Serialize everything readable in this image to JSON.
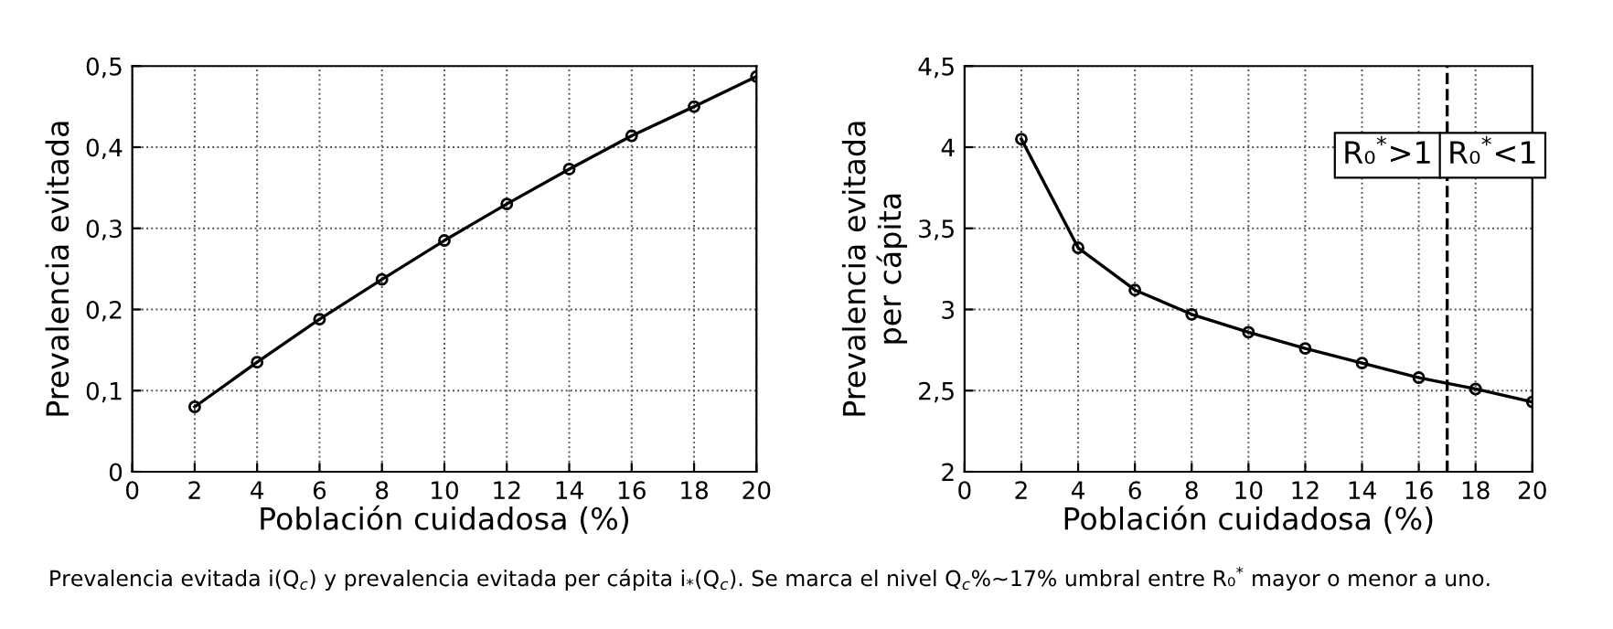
{
  "chart_data": [
    {
      "type": "line",
      "xlabel": "Población cuidadosa (%)",
      "ylabel": "Prevalencia evitada",
      "x": [
        2,
        4,
        6,
        8,
        10,
        12,
        14,
        16,
        18,
        20
      ],
      "series": [
        {
          "color": "#000000",
          "values": [
            0.08,
            0.135,
            0.188,
            0.237,
            0.285,
            0.33,
            0.373,
            0.414,
            0.45,
            0.487
          ]
        }
      ],
      "xlim": [
        0,
        20
      ],
      "xticks": [
        0,
        2,
        4,
        6,
        8,
        10,
        12,
        14,
        16,
        18,
        20
      ],
      "ylim": [
        0,
        0.5
      ],
      "yticks": [
        0,
        {
          "value": 0.1,
          "label": "0,1"
        },
        {
          "value": 0.2,
          "label": "0,2"
        },
        {
          "value": 0.3,
          "label": "0,3"
        },
        {
          "value": 0.4,
          "label": "0,4"
        },
        {
          "value": 0.5,
          "label": "0,5"
        }
      ],
      "grid": true,
      "marker": "circle",
      "line_style": "solid",
      "annotations": [
        "Prevalencia evitada i(Q$_{c}$) y prevalencia evitada per cápita i$_{*}$(Q$_{c}$). Se marca el nivel Q$_{c}$%~17% umbral entre R₀$^{*}$ mayor o menor a uno."
      ]
    },
    {
      "type": "line",
      "xlabel": "Población cuidadosa (%)",
      "ylabel": "Prevalencia evitada\nper cápita",
      "x": [
        2,
        4,
        6,
        8,
        10,
        12,
        14,
        16,
        18,
        20
      ],
      "series": [
        {
          "color": "#000000",
          "values": [
            4.05,
            3.38,
            3.12,
            2.97,
            2.86,
            2.76,
            2.67,
            2.58,
            2.51,
            2.43
          ]
        }
      ],
      "xlim": [
        0,
        20
      ],
      "xticks": [
        0,
        2,
        4,
        6,
        8,
        10,
        12,
        14,
        16,
        18,
        20
      ],
      "ylim": [
        2,
        4.5
      ],
      "yticks": [
        2,
        {
          "value": 2.5,
          "label": "2,5"
        },
        3,
        {
          "value": 3.5,
          "label": "3,5"
        },
        4,
        {
          "value": 4.5,
          "label": "4,5"
        }
      ],
      "grid": true,
      "marker": "circle",
      "line_style": "solid",
      "ref_lines": [
        {
          "axis": "x",
          "value": 17,
          "color": "#000000",
          "line_style": "dashed"
        }
      ],
      "annotations": [
        "R₀$^{*}$>1",
        "R₀$^{*}$<1"
      ]
    }
  ]
}
